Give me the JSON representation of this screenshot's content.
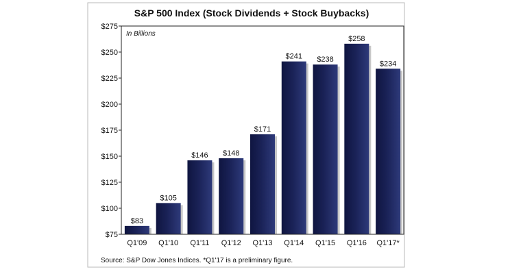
{
  "chart_data": {
    "type": "bar",
    "title": "S&P 500 Index (Stock Dividends + Stock Buybacks)",
    "unit_note": "In Billions",
    "categories": [
      "Q1'09",
      "Q1'10",
      "Q1'11",
      "Q1'12",
      "Q1'13",
      "Q1'14",
      "Q1'15",
      "Q1'16",
      "Q1'17*"
    ],
    "values": [
      83,
      105,
      146,
      148,
      171,
      241,
      238,
      258,
      234
    ],
    "value_labels": [
      "$83",
      "$105",
      "$146",
      "$148",
      "$171",
      "$241",
      "$238",
      "$258",
      "$234"
    ],
    "ylim": [
      75,
      275
    ],
    "yticks": [
      75,
      100,
      125,
      150,
      175,
      200,
      225,
      250,
      275
    ],
    "ytick_labels": [
      "$75",
      "$100",
      "$125",
      "$150",
      "$175",
      "$200",
      "$225",
      "$250",
      "$275"
    ],
    "source": "Source: S&P Dow Jones Indices. *Q1'17 is a preliminary figure.",
    "bar_color": "#1a2257",
    "grid": false
  }
}
